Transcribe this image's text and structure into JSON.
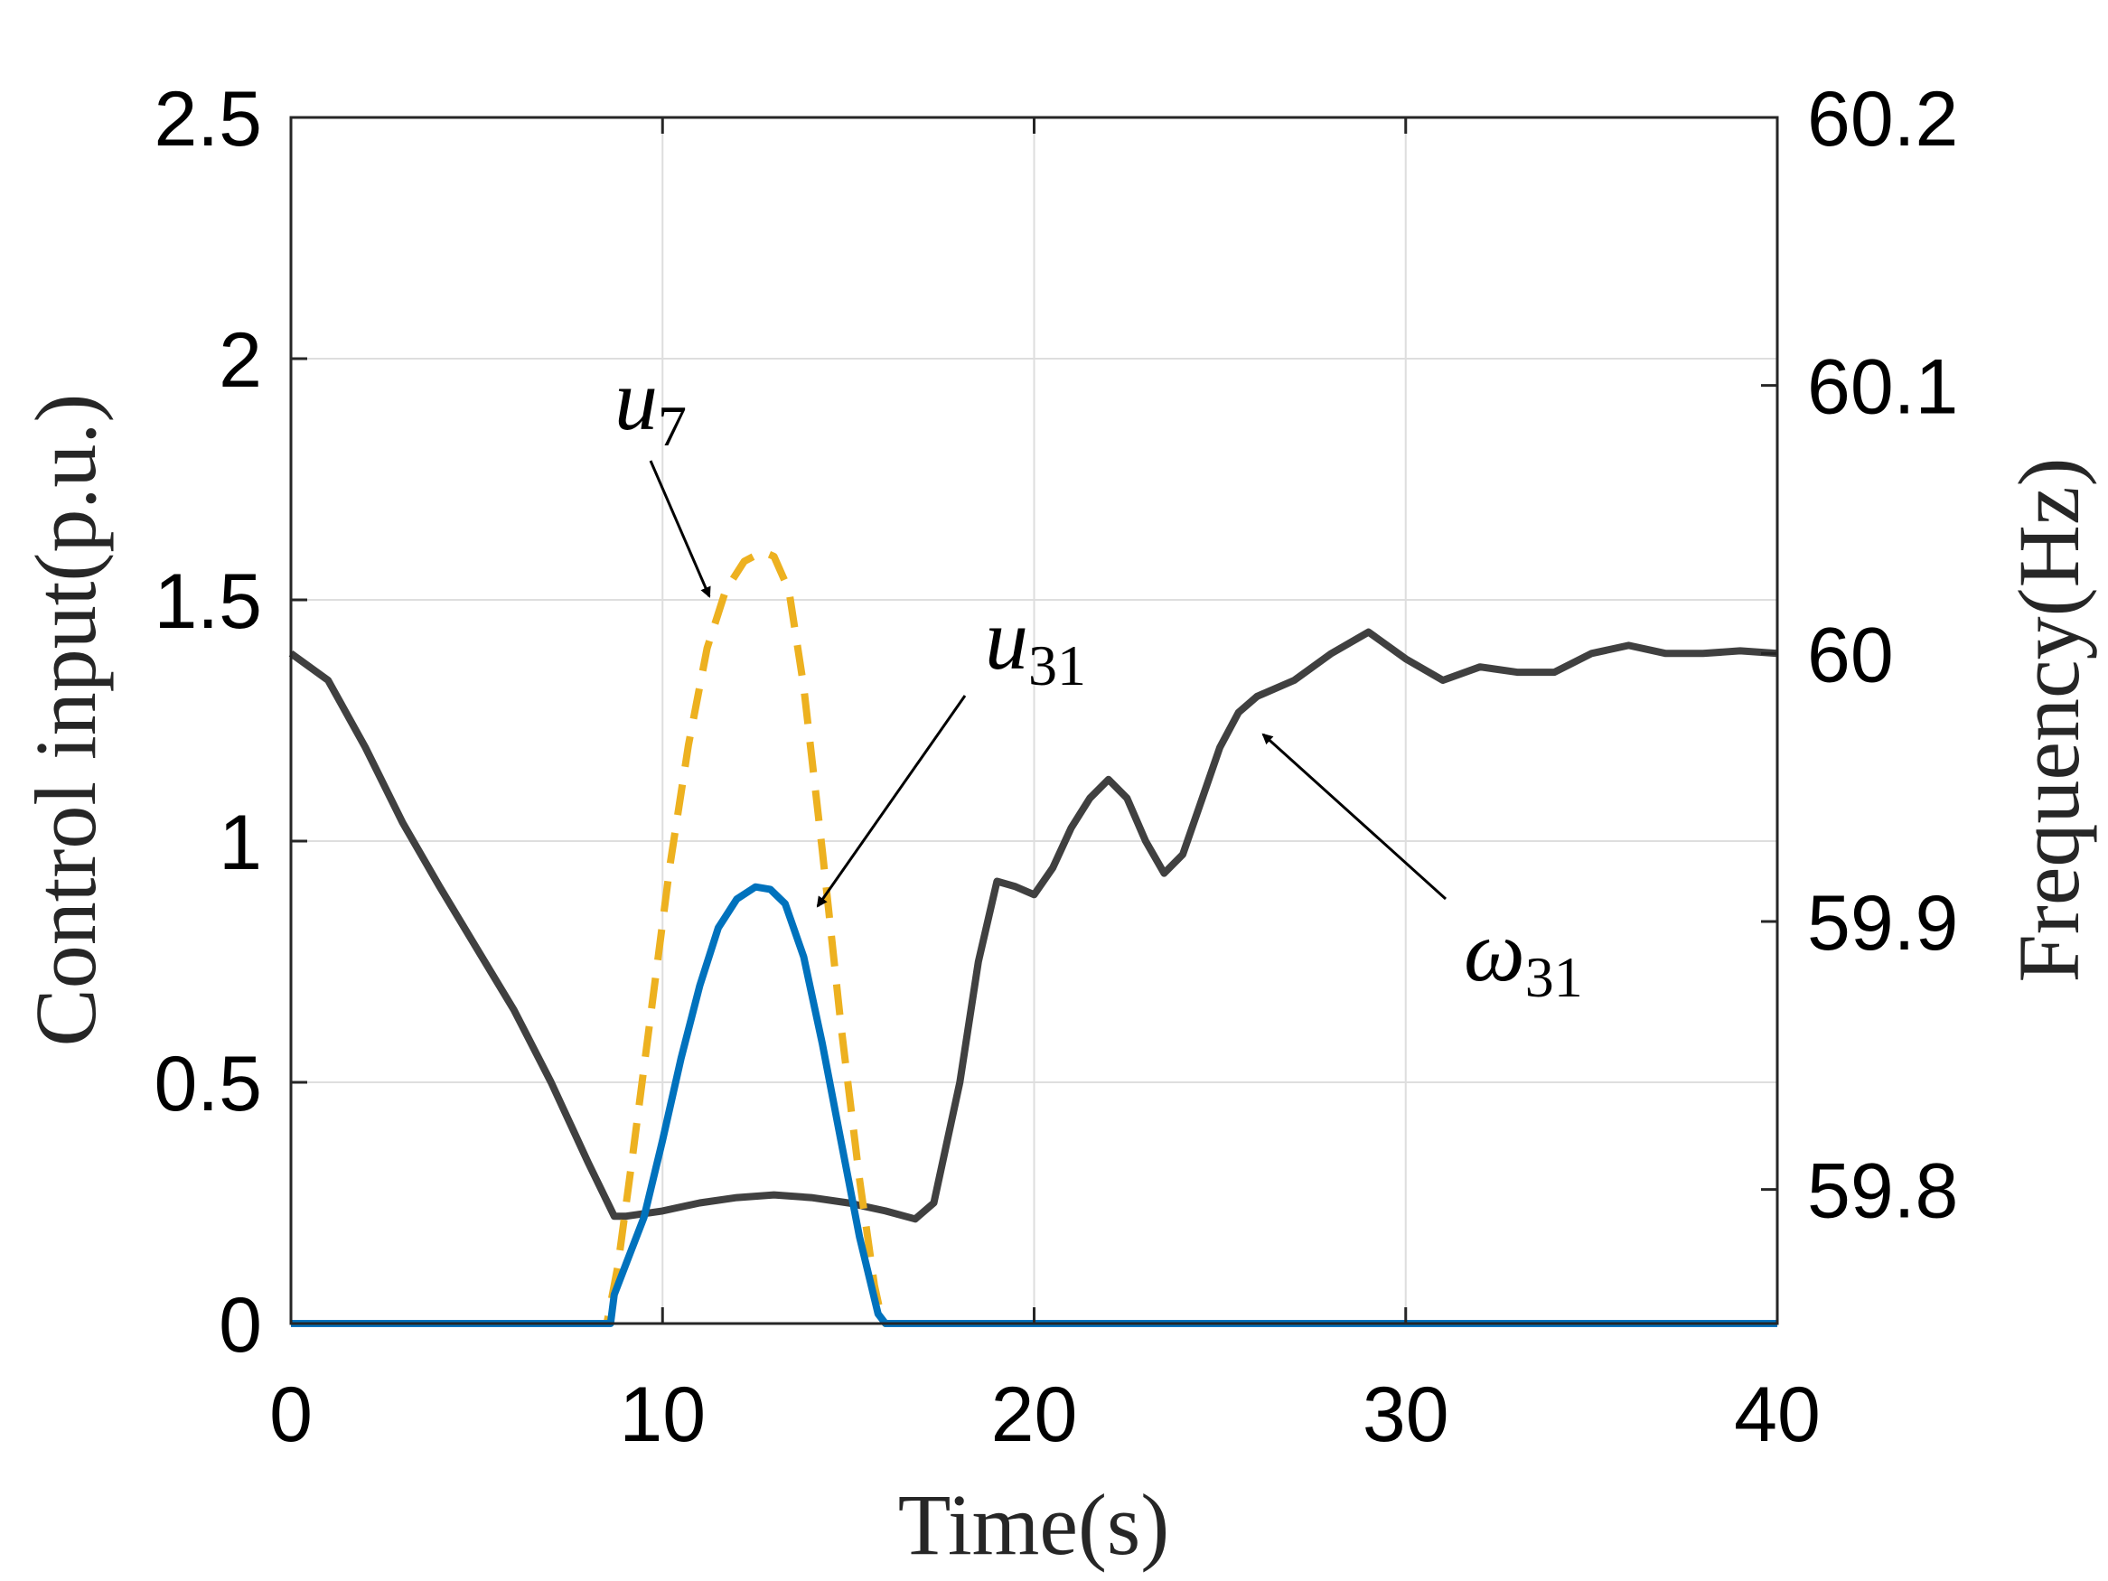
{
  "chart_data": {
    "type": "line",
    "title": "",
    "xlabel": "Time(s)",
    "ylabel": "Control input(p.u.)",
    "y2label": "Frequency(Hz)",
    "xlim": [
      0,
      40
    ],
    "ylim": [
      0,
      2.5
    ],
    "y2lim": [
      59.75,
      60.2
    ],
    "grid": true,
    "x_ticks": [
      "0",
      "10",
      "20",
      "30",
      "40"
    ],
    "y_ticks": [
      "0",
      "0.5",
      "1",
      "1.5",
      "2",
      "2.5"
    ],
    "y2_ticks": [
      "59.8",
      "59.9",
      "60",
      "60.1",
      "60.2"
    ],
    "colors": {
      "u31": "#0072BD",
      "u7": "#EDB120",
      "omega31": "#404040"
    },
    "series": [
      {
        "name": "u31",
        "axis": "left",
        "style": "solid",
        "x": [
          0,
          8.6,
          8.7,
          9.0,
          9.5,
          10.0,
          10.5,
          11.0,
          11.5,
          12.0,
          12.5,
          12.9,
          13.3,
          13.8,
          14.3,
          14.8,
          15.3,
          15.8,
          16.0,
          16.1,
          40
        ],
        "y": [
          0,
          0,
          0.06,
          0.12,
          0.22,
          0.38,
          0.55,
          0.7,
          0.82,
          0.88,
          0.905,
          0.9,
          0.87,
          0.76,
          0.58,
          0.38,
          0.18,
          0.02,
          0,
          0,
          0
        ]
      },
      {
        "name": "u7",
        "axis": "left",
        "style": "dashed",
        "x": [
          0,
          8.5,
          8.8,
          9.2,
          9.7,
          10.2,
          10.7,
          11.2,
          11.7,
          12.2,
          12.7,
          13.0,
          13.4,
          13.8,
          14.3,
          14.8,
          15.3,
          15.7,
          15.9,
          16.0,
          40
        ],
        "y": [
          0,
          0,
          0.12,
          0.35,
          0.65,
          0.95,
          1.2,
          1.4,
          1.52,
          1.58,
          1.6,
          1.59,
          1.52,
          1.32,
          0.98,
          0.62,
          0.3,
          0.08,
          0.01,
          0,
          0
        ]
      },
      {
        "name": "omega31",
        "axis": "right",
        "style": "solid",
        "x": [
          0,
          1,
          2,
          3,
          4,
          5,
          6,
          7,
          8,
          8.7,
          9,
          10,
          11,
          12,
          13,
          14,
          15,
          16,
          16.8,
          17.3,
          18,
          18.5,
          19,
          19.5,
          20,
          20.5,
          21,
          21.5,
          22,
          22.5,
          23,
          23.5,
          24,
          24.5,
          25,
          25.5,
          26,
          27,
          28,
          29,
          30,
          31,
          32,
          33,
          34,
          35,
          36,
          37,
          38,
          39,
          40
        ],
        "y": [
          60.0,
          59.99,
          59.965,
          59.937,
          59.913,
          59.89,
          59.867,
          59.84,
          59.81,
          59.79,
          59.79,
          59.792,
          59.795,
          59.797,
          59.798,
          59.797,
          59.795,
          59.792,
          59.789,
          59.795,
          59.84,
          59.885,
          59.915,
          59.913,
          59.91,
          59.92,
          59.935,
          59.946,
          59.953,
          59.946,
          59.93,
          59.918,
          59.925,
          59.945,
          59.965,
          59.978,
          59.984,
          59.99,
          60.0,
          60.008,
          59.998,
          59.99,
          59.995,
          59.993,
          59.993,
          60.0,
          60.003,
          60.0,
          60.0,
          60.001,
          60.0
        ]
      }
    ],
    "annotations": [
      {
        "text": "u",
        "sub": "7",
        "series": "u7"
      },
      {
        "text": "u",
        "sub": "31",
        "series": "u31"
      },
      {
        "text": "ω",
        "sub": "31",
        "series": "omega31"
      }
    ]
  }
}
